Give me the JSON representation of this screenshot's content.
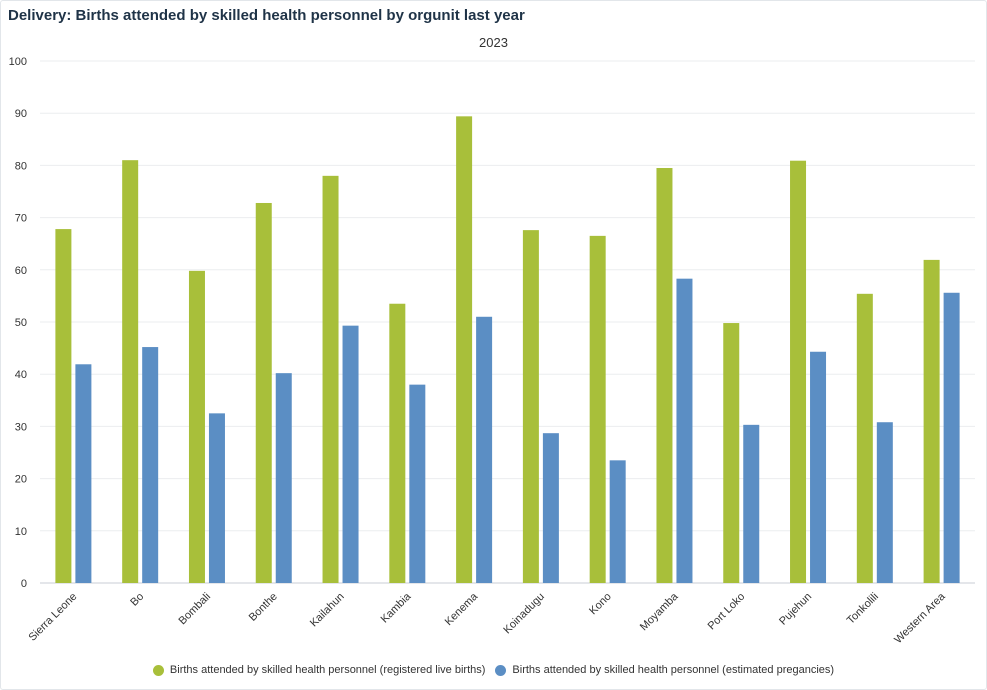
{
  "chart_data": {
    "type": "bar",
    "title": "Delivery: Births attended by skilled health personnel by orgunit last year",
    "subtitle": "2023",
    "xlabel": "",
    "ylabel": "",
    "ylim": [
      0,
      100
    ],
    "yticks": [
      0,
      10,
      20,
      30,
      40,
      50,
      60,
      70,
      80,
      90,
      100
    ],
    "grid": true,
    "legend_position": "bottom",
    "categories": [
      "Sierra Leone",
      "Bo",
      "Bombali",
      "Bonthe",
      "Kailahun",
      "Kambia",
      "Kenema",
      "Koinadugu",
      "Kono",
      "Moyamba",
      "Port Loko",
      "Pujehun",
      "Tonkolili",
      "Western Area"
    ],
    "series": [
      {
        "name": "Births attended by skilled health personnel (registered live births)",
        "color": "#a8bf3a",
        "values": [
          67.8,
          81.0,
          59.8,
          72.8,
          78.0,
          53.5,
          89.4,
          67.6,
          66.5,
          79.5,
          49.8,
          80.9,
          55.4,
          61.9
        ]
      },
      {
        "name": "Births attended by skilled health personnel (estimated pregancies)",
        "color": "#5b8ec4",
        "values": [
          41.9,
          45.2,
          32.5,
          40.2,
          49.3,
          38.0,
          51.0,
          28.7,
          23.5,
          58.3,
          30.3,
          44.3,
          30.8,
          55.6
        ]
      }
    ]
  }
}
